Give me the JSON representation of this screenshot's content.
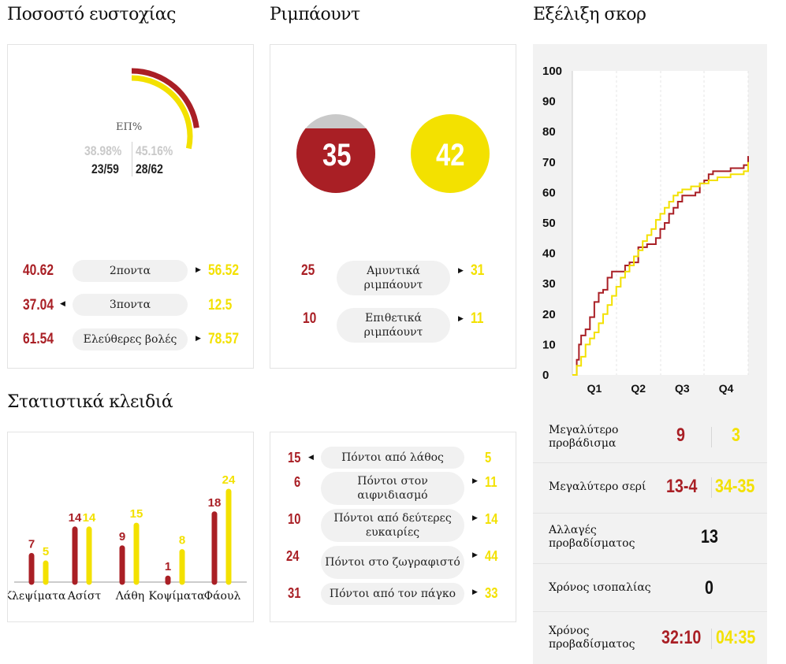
{
  "colors": {
    "team1": "#a91f25",
    "team2": "#f3e100"
  },
  "shooting": {
    "title": "Ποσοστό ευστοχίας",
    "fg_label": "ΕΠ%",
    "team1_pct": "38.98%",
    "team2_pct": "45.16%",
    "team1_made": "23/59",
    "team2_made": "28/62",
    "team1_pct_value": 38.98,
    "team2_pct_value": 45.16,
    "rows": [
      {
        "label": "2ποντα",
        "t1": "40.62",
        "t2": "56.52",
        "leader": "team2"
      },
      {
        "label": "3ποντα",
        "t1": "37.04",
        "t2": "12.5",
        "leader": "team1"
      },
      {
        "label": "Ελεύθερες βολές",
        "t1": "61.54",
        "t2": "78.57",
        "leader": "team2"
      }
    ]
  },
  "rebounds": {
    "title": "Ριμπάουντ",
    "team1_total": "35",
    "team2_total": "42",
    "rows": [
      {
        "label": "Αμυντικά ριμπάουντ",
        "t1": "25",
        "t2": "31",
        "leader": "team2"
      },
      {
        "label": "Επιθετικά ριμπάουντ",
        "t1": "10",
        "t2": "11",
        "leader": "team2"
      }
    ]
  },
  "score_evolution": {
    "title": "Εξέλιξη σκορ",
    "y_ticks": [
      "100",
      "90",
      "80",
      "70",
      "60",
      "50",
      "40",
      "30",
      "20",
      "10",
      "0"
    ],
    "x_ticks": [
      "Q1",
      "Q2",
      "Q3",
      "Q4"
    ]
  },
  "key_stats": {
    "title": "Στατιστικά κλειδιά",
    "bars": [
      {
        "label": "Κλεψίματα",
        "t1": "7",
        "t2": "5"
      },
      {
        "label": "Ασίστ",
        "t1": "14",
        "t2": "14"
      },
      {
        "label": "Λάθη",
        "t1": "9",
        "t2": "15"
      },
      {
        "label": "Κοψίματα",
        "t1": "1",
        "t2": "8"
      },
      {
        "label": "Φάουλ",
        "t1": "18",
        "t2": "24"
      }
    ],
    "points": [
      {
        "label": "Πόντοι από λάθος",
        "t1": "15",
        "t2": "5",
        "leader": "team1"
      },
      {
        "label": "Πόντοι στον αιφνιδιασμό",
        "t1": "6",
        "t2": "11",
        "leader": "team2"
      },
      {
        "label": "Πόντοι από δεύτερες ευκαιρίες",
        "t1": "10",
        "t2": "14",
        "leader": "team2"
      },
      {
        "label": "Πόντοι στο ζωγραφιστό",
        "t1": "24",
        "t2": "44",
        "leader": "team2"
      },
      {
        "label": "Πόντοι από τον πάγκο",
        "t1": "31",
        "t2": "33",
        "leader": "team2"
      }
    ]
  },
  "game_stats": [
    {
      "label": "Μεγαλύτερο προβάδισμα",
      "t1": "9",
      "t2": "3"
    },
    {
      "label": "Μεγαλύτερο σερί",
      "t1": "13-4",
      "t2": "34-35"
    },
    {
      "label": "Αλλαγές προβαδίσματος",
      "value": "13"
    },
    {
      "label": "Χρόνος ισοπαλίας",
      "value": "0"
    },
    {
      "label": "Χρόνος προβαδίσματος",
      "t1": "32:10",
      "t2": "04:35"
    }
  ]
}
